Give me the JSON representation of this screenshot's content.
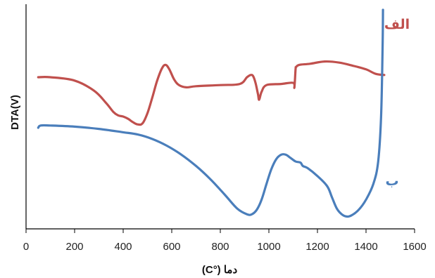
{
  "chart_data": {
    "type": "line",
    "title": "",
    "xlabel": "دما (°C)",
    "ylabel": "DTA(V)",
    "xlim": [
      0,
      1600
    ],
    "xticks": [
      "0",
      "200",
      "400",
      "600",
      "800",
      "1000",
      "1200",
      "1400",
      "1600"
    ],
    "y_ticks_shown": false,
    "grid": false,
    "series": [
      {
        "name": "الف",
        "color": "#c0504d",
        "x": [
          50,
          100,
          200,
          280,
          330,
          360,
          380,
          400,
          420,
          440,
          460,
          480,
          500,
          520,
          540,
          560,
          575,
          590,
          610,
          630,
          660,
          700,
          800,
          880,
          910,
          925,
          935,
          945,
          955,
          960,
          970,
          990,
          1050,
          1100,
          1105,
          1110,
          1112,
          1125,
          1170,
          1230,
          1290,
          1350,
          1400,
          1440,
          1475
        ],
        "y": [
          0.85,
          0.85,
          0.82,
          0.73,
          0.62,
          0.54,
          0.51,
          0.5,
          0.48,
          0.45,
          0.43,
          0.44,
          0.53,
          0.67,
          0.82,
          0.93,
          0.96,
          0.92,
          0.83,
          0.78,
          0.76,
          0.77,
          0.78,
          0.79,
          0.85,
          0.87,
          0.86,
          0.8,
          0.7,
          0.65,
          0.72,
          0.78,
          0.79,
          0.8,
          0.76,
          0.92,
          0.94,
          0.96,
          0.97,
          0.99,
          0.98,
          0.95,
          0.92,
          0.88,
          0.87
        ],
        "label": "الف"
      },
      {
        "name": "ب",
        "color": "#4a7ebb",
        "x": [
          50,
          60,
          100,
          200,
          300,
          400,
          460,
          520,
          580,
          640,
          700,
          760,
          820,
          870,
          910,
          930,
          950,
          970,
          990,
          1010,
          1030,
          1050,
          1070,
          1090,
          1110,
          1130,
          1140,
          1160,
          1200,
          1240,
          1260,
          1280,
          1300,
          1320,
          1340,
          1370,
          1400,
          1430,
          1450,
          1462,
          1468,
          1470
        ],
        "y": [
          0.4,
          0.42,
          0.42,
          0.41,
          0.39,
          0.36,
          0.34,
          0.3,
          0.24,
          0.16,
          0.06,
          -0.06,
          -0.2,
          -0.32,
          -0.37,
          -0.37,
          -0.33,
          -0.24,
          -0.1,
          0.03,
          0.12,
          0.16,
          0.16,
          0.13,
          0.1,
          0.09,
          0.06,
          0.04,
          -0.03,
          -0.12,
          -0.22,
          -0.32,
          -0.37,
          -0.39,
          -0.38,
          -0.33,
          -0.24,
          -0.1,
          0.1,
          0.5,
          1.1,
          1.45
        ],
        "label": "ب"
      }
    ]
  }
}
